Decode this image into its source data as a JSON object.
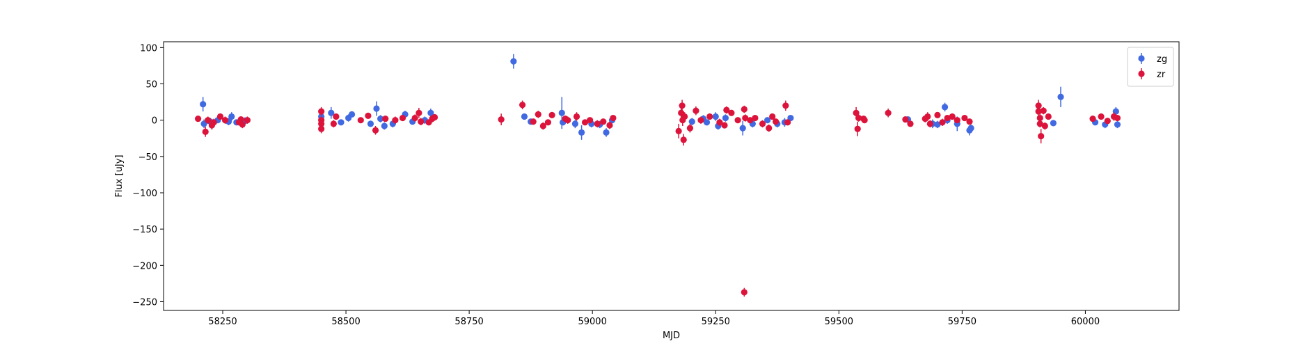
{
  "chart_data": {
    "type": "scatter",
    "xlabel": "MJD",
    "ylabel": "Flux [uJy]",
    "xlim": [
      58130,
      60190
    ],
    "ylim": [
      -262,
      108
    ],
    "x_ticks": [
      58250,
      58500,
      58750,
      59000,
      59250,
      59500,
      59750,
      60000
    ],
    "y_ticks": [
      100,
      50,
      0,
      -50,
      -100,
      -150,
      -200,
      -250
    ],
    "grid": false,
    "legend_position": "top-right",
    "error_bars": true,
    "series": [
      {
        "name": "zg",
        "color": "#4169e1",
        "points": [
          {
            "x": 58210,
            "y": 22,
            "err": 10
          },
          {
            "x": 58212,
            "y": -5,
            "err": 6
          },
          {
            "x": 58225,
            "y": -2,
            "err": 5
          },
          {
            "x": 58240,
            "y": 0,
            "err": 4
          },
          {
            "x": 58262,
            "y": -2,
            "err": 5
          },
          {
            "x": 58268,
            "y": 5,
            "err": 6
          },
          {
            "x": 58278,
            "y": -3,
            "err": 4
          },
          {
            "x": 58295,
            "y": -1,
            "err": 5
          },
          {
            "x": 58450,
            "y": 5,
            "err": 10
          },
          {
            "x": 58470,
            "y": 10,
            "err": 8
          },
          {
            "x": 58490,
            "y": -3,
            "err": 4
          },
          {
            "x": 58505,
            "y": 3,
            "err": 5
          },
          {
            "x": 58512,
            "y": 8,
            "err": 4
          },
          {
            "x": 58550,
            "y": -5,
            "err": 4
          },
          {
            "x": 58562,
            "y": 16,
            "err": 10
          },
          {
            "x": 58570,
            "y": 2,
            "err": 5
          },
          {
            "x": 58578,
            "y": -8,
            "err": 5
          },
          {
            "x": 58595,
            "y": -5,
            "err": 5
          },
          {
            "x": 58620,
            "y": 8,
            "err": 5
          },
          {
            "x": 58635,
            "y": -2,
            "err": 4
          },
          {
            "x": 58660,
            "y": 0,
            "err": 5
          },
          {
            "x": 58672,
            "y": 10,
            "err": 6
          },
          {
            "x": 58840,
            "y": 81,
            "err": 10
          },
          {
            "x": 58862,
            "y": 5,
            "err": 4
          },
          {
            "x": 58875,
            "y": -2,
            "err": 4
          },
          {
            "x": 58938,
            "y": 10,
            "err": 22
          },
          {
            "x": 58940,
            "y": -3,
            "err": 4
          },
          {
            "x": 58965,
            "y": -5,
            "err": 6
          },
          {
            "x": 58978,
            "y": -17,
            "err": 10
          },
          {
            "x": 58998,
            "y": -5,
            "err": 5
          },
          {
            "x": 59015,
            "y": -6,
            "err": 5
          },
          {
            "x": 59028,
            "y": -17,
            "err": 6
          },
          {
            "x": 59040,
            "y": 0,
            "err": 4
          },
          {
            "x": 59202,
            "y": -2,
            "err": 5
          },
          {
            "x": 59225,
            "y": 2,
            "err": 5
          },
          {
            "x": 59232,
            "y": -3,
            "err": 4
          },
          {
            "x": 59250,
            "y": 5,
            "err": 6
          },
          {
            "x": 59255,
            "y": -8,
            "err": 5
          },
          {
            "x": 59270,
            "y": 3,
            "err": 5
          },
          {
            "x": 59305,
            "y": -11,
            "err": 10
          },
          {
            "x": 59325,
            "y": -5,
            "err": 5
          },
          {
            "x": 59355,
            "y": 0,
            "err": 4
          },
          {
            "x": 59375,
            "y": -5,
            "err": 5
          },
          {
            "x": 59390,
            "y": -3,
            "err": 6
          },
          {
            "x": 59402,
            "y": 3,
            "err": 4
          },
          {
            "x": 59640,
            "y": 1,
            "err": 4
          },
          {
            "x": 59690,
            "y": -5,
            "err": 6
          },
          {
            "x": 59700,
            "y": -6,
            "err": 5
          },
          {
            "x": 59715,
            "y": 18,
            "err": 6
          },
          {
            "x": 59720,
            "y": 0,
            "err": 5
          },
          {
            "x": 59740,
            "y": -5,
            "err": 10
          },
          {
            "x": 59765,
            "y": -14,
            "err": 7
          },
          {
            "x": 59768,
            "y": -11,
            "err": 5
          },
          {
            "x": 59935,
            "y": -4,
            "err": 4
          },
          {
            "x": 59950,
            "y": 32,
            "err": 14
          },
          {
            "x": 60020,
            "y": -3,
            "err": 4
          },
          {
            "x": 60040,
            "y": -6,
            "err": 5
          },
          {
            "x": 60062,
            "y": 12,
            "err": 6
          },
          {
            "x": 60065,
            "y": -6,
            "err": 5
          }
        ]
      },
      {
        "name": "zr",
        "color": "#dc143c",
        "points": [
          {
            "x": 58200,
            "y": 2,
            "err": 4
          },
          {
            "x": 58215,
            "y": -16,
            "err": 7
          },
          {
            "x": 58220,
            "y": 0,
            "err": 5
          },
          {
            "x": 58228,
            "y": -7,
            "err": 6
          },
          {
            "x": 58232,
            "y": -3,
            "err": 5
          },
          {
            "x": 58245,
            "y": 5,
            "err": 4
          },
          {
            "x": 58255,
            "y": 0,
            "err": 5
          },
          {
            "x": 58283,
            "y": -3,
            "err": 4
          },
          {
            "x": 58287,
            "y": 1,
            "err": 4
          },
          {
            "x": 58290,
            "y": -6,
            "err": 5
          },
          {
            "x": 58300,
            "y": 0,
            "err": 5
          },
          {
            "x": 58450,
            "y": 12,
            "err": 6
          },
          {
            "x": 58450,
            "y": 0,
            "err": 5
          },
          {
            "x": 58450,
            "y": -5,
            "err": 4
          },
          {
            "x": 58450,
            "y": -12,
            "err": 6
          },
          {
            "x": 58475,
            "y": -5,
            "err": 5
          },
          {
            "x": 58480,
            "y": 5,
            "err": 4
          },
          {
            "x": 58530,
            "y": 0,
            "err": 4
          },
          {
            "x": 58545,
            "y": 6,
            "err": 4
          },
          {
            "x": 58560,
            "y": -14,
            "err": 6
          },
          {
            "x": 58580,
            "y": 2,
            "err": 4
          },
          {
            "x": 58600,
            "y": 0,
            "err": 5
          },
          {
            "x": 58615,
            "y": 3,
            "err": 4
          },
          {
            "x": 58640,
            "y": 3,
            "err": 5
          },
          {
            "x": 58648,
            "y": 10,
            "err": 7
          },
          {
            "x": 58652,
            "y": -2,
            "err": 5
          },
          {
            "x": 58668,
            "y": -3,
            "err": 4
          },
          {
            "x": 58675,
            "y": 2,
            "err": 5
          },
          {
            "x": 58680,
            "y": 4,
            "err": 4
          },
          {
            "x": 58815,
            "y": 1,
            "err": 8
          },
          {
            "x": 58858,
            "y": 21,
            "err": 6
          },
          {
            "x": 58880,
            "y": -2,
            "err": 4
          },
          {
            "x": 58890,
            "y": 8,
            "err": 5
          },
          {
            "x": 58900,
            "y": -8,
            "err": 5
          },
          {
            "x": 58910,
            "y": -3,
            "err": 4
          },
          {
            "x": 58918,
            "y": 7,
            "err": 4
          },
          {
            "x": 58945,
            "y": 2,
            "err": 4
          },
          {
            "x": 58950,
            "y": 0,
            "err": 5
          },
          {
            "x": 58968,
            "y": 5,
            "err": 6
          },
          {
            "x": 58985,
            "y": -3,
            "err": 4
          },
          {
            "x": 58995,
            "y": 0,
            "err": 4
          },
          {
            "x": 59010,
            "y": -5,
            "err": 5
          },
          {
            "x": 59022,
            "y": -2,
            "err": 4
          },
          {
            "x": 59035,
            "y": -7,
            "err": 5
          },
          {
            "x": 59042,
            "y": 3,
            "err": 4
          },
          {
            "x": 59175,
            "y": -15,
            "err": 10
          },
          {
            "x": 59180,
            "y": 10,
            "err": 10
          },
          {
            "x": 59182,
            "y": 20,
            "err": 8
          },
          {
            "x": 59183,
            "y": 0,
            "err": 8
          },
          {
            "x": 59185,
            "y": -27,
            "err": 8
          },
          {
            "x": 59187,
            "y": 5,
            "err": 6
          },
          {
            "x": 59198,
            "y": -11,
            "err": 6
          },
          {
            "x": 59210,
            "y": 13,
            "err": 6
          },
          {
            "x": 59220,
            "y": 0,
            "err": 5
          },
          {
            "x": 59238,
            "y": 5,
            "err": 4
          },
          {
            "x": 59258,
            "y": -3,
            "err": 5
          },
          {
            "x": 59268,
            "y": -7,
            "err": 4
          },
          {
            "x": 59272,
            "y": 14,
            "err": 5
          },
          {
            "x": 59282,
            "y": 10,
            "err": 4
          },
          {
            "x": 59295,
            "y": 0,
            "err": 4
          },
          {
            "x": 59308,
            "y": 15,
            "err": 5
          },
          {
            "x": 59310,
            "y": 3,
            "err": 5
          },
          {
            "x": 59308,
            "y": -237,
            "err": 6
          },
          {
            "x": 59320,
            "y": 0,
            "err": 4
          },
          {
            "x": 59330,
            "y": 3,
            "err": 4
          },
          {
            "x": 59345,
            "y": -5,
            "err": 5
          },
          {
            "x": 59358,
            "y": -11,
            "err": 5
          },
          {
            "x": 59365,
            "y": 5,
            "err": 4
          },
          {
            "x": 59372,
            "y": -2,
            "err": 4
          },
          {
            "x": 59392,
            "y": 20,
            "err": 7
          },
          {
            "x": 59396,
            "y": -3,
            "err": 4
          },
          {
            "x": 59535,
            "y": 10,
            "err": 8
          },
          {
            "x": 59538,
            "y": -12,
            "err": 10
          },
          {
            "x": 59540,
            "y": 3,
            "err": 5
          },
          {
            "x": 59550,
            "y": 2,
            "err": 4
          },
          {
            "x": 59552,
            "y": 0,
            "err": 4
          },
          {
            "x": 59600,
            "y": 10,
            "err": 6
          },
          {
            "x": 59635,
            "y": 1,
            "err": 4
          },
          {
            "x": 59645,
            "y": -5,
            "err": 4
          },
          {
            "x": 59675,
            "y": 2,
            "err": 5
          },
          {
            "x": 59680,
            "y": 5,
            "err": 6
          },
          {
            "x": 59685,
            "y": -5,
            "err": 5
          },
          {
            "x": 59700,
            "y": 7,
            "err": 4
          },
          {
            "x": 59710,
            "y": -3,
            "err": 5
          },
          {
            "x": 59720,
            "y": 3,
            "err": 4
          },
          {
            "x": 59730,
            "y": 5,
            "err": 4
          },
          {
            "x": 59740,
            "y": 0,
            "err": 4
          },
          {
            "x": 59755,
            "y": 3,
            "err": 4
          },
          {
            "x": 59765,
            "y": -2,
            "err": 4
          },
          {
            "x": 59905,
            "y": 20,
            "err": 8
          },
          {
            "x": 59905,
            "y": 12,
            "err": 6
          },
          {
            "x": 59908,
            "y": 3,
            "err": 6
          },
          {
            "x": 59908,
            "y": -5,
            "err": 5
          },
          {
            "x": 59910,
            "y": -22,
            "err": 10
          },
          {
            "x": 59915,
            "y": 13,
            "err": 5
          },
          {
            "x": 59918,
            "y": -8,
            "err": 5
          },
          {
            "x": 59925,
            "y": 5,
            "err": 4
          },
          {
            "x": 60015,
            "y": 2,
            "err": 4
          },
          {
            "x": 60032,
            "y": 5,
            "err": 4
          },
          {
            "x": 60045,
            "y": -1,
            "err": 4
          },
          {
            "x": 60058,
            "y": 5,
            "err": 6
          },
          {
            "x": 60065,
            "y": 3,
            "err": 4
          }
        ]
      }
    ]
  }
}
